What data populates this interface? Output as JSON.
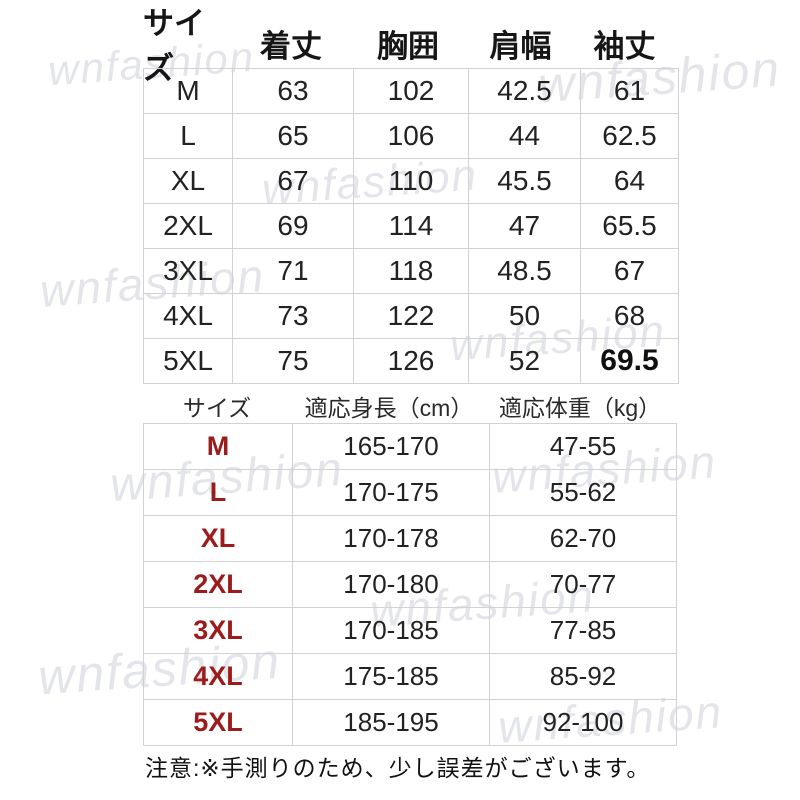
{
  "watermark": {
    "text": "wnfashion"
  },
  "colors": {
    "size_label_red": "#9b1c1c",
    "table_border": "#d2d2d2",
    "watermark_gray": "#e3e5ea",
    "text_black": "#1c1c1c"
  },
  "note": "注意:※手測りのため、少し誤差がございます。",
  "chart_data": [
    {
      "type": "table",
      "name": "size_measurements_cm",
      "columns": [
        "サイズ",
        "着丈",
        "胸囲",
        "肩幅",
        "袖丈"
      ],
      "rows": [
        [
          "M",
          "63",
          "102",
          "42.5",
          "61"
        ],
        [
          "L",
          "65",
          "106",
          "44",
          "62.5"
        ],
        [
          "XL",
          "67",
          "110",
          "45.5",
          "64"
        ],
        [
          "2XL",
          "69",
          "114",
          "47",
          "65.5"
        ],
        [
          "3XL",
          "71",
          "118",
          "48.5",
          "67"
        ],
        [
          "4XL",
          "73",
          "122",
          "50",
          "68"
        ],
        [
          "5XL",
          "75",
          "126",
          "52",
          "69.5"
        ]
      ]
    },
    {
      "type": "table",
      "name": "size_fit_guide",
      "columns": [
        "サイズ",
        "適応身長（cm）",
        "適応体重（kg）"
      ],
      "rows": [
        [
          "M",
          "165-170",
          "47-55"
        ],
        [
          "L",
          "170-175",
          "55-62"
        ],
        [
          "XL",
          "170-178",
          "62-70"
        ],
        [
          "2XL",
          "170-180",
          "70-77"
        ],
        [
          "3XL",
          "170-185",
          "77-85"
        ],
        [
          "4XL",
          "175-185",
          "85-92"
        ],
        [
          "5XL",
          "185-195",
          "92-100"
        ]
      ]
    }
  ]
}
